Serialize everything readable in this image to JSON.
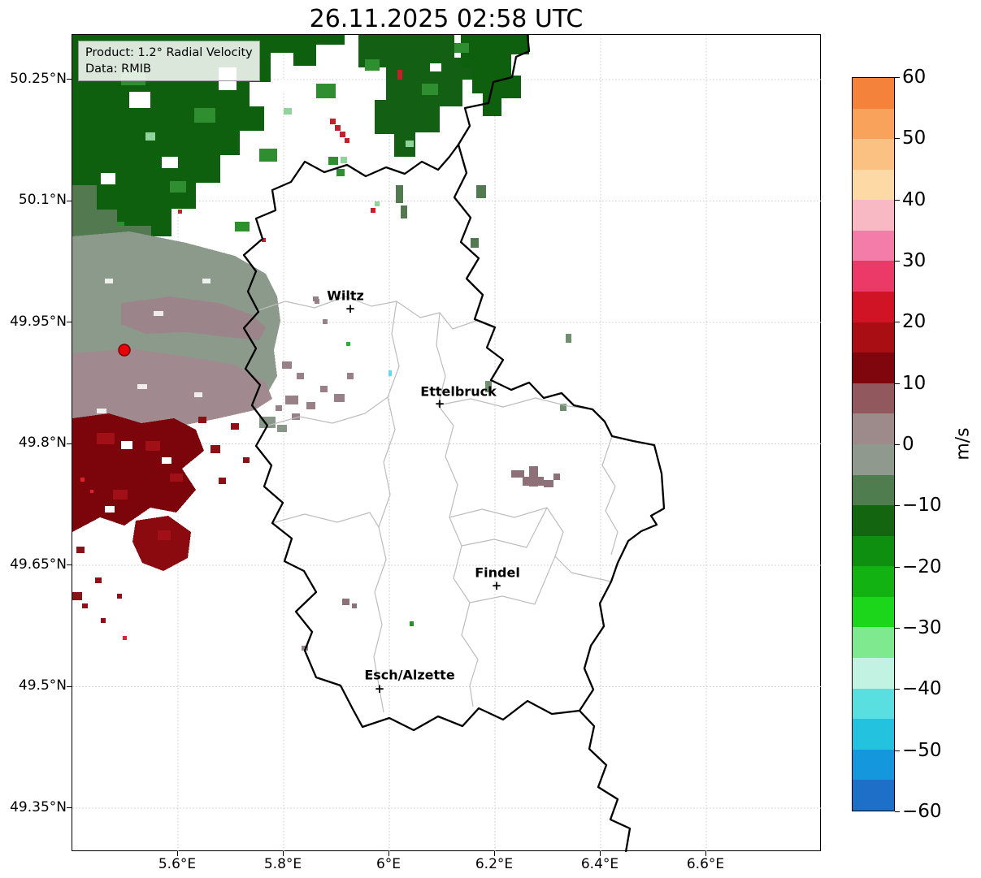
{
  "title": "26.11.2025 02:58 UTC",
  "info_box": {
    "product": "Product: 1.2° Radial Velocity",
    "data_source": "Data: RMIB"
  },
  "axes": {
    "y_ticks": [
      "50.25°N",
      "50.1°N",
      "49.95°N",
      "49.8°N",
      "49.65°N",
      "49.5°N",
      "49.35°N"
    ],
    "x_ticks": [
      "5.6°E",
      "5.8°E",
      "6°E",
      "6.2°E",
      "6.4°E",
      "6.6°E"
    ]
  },
  "cities": [
    {
      "name": "Wiltz"
    },
    {
      "name": "Ettelbruck"
    },
    {
      "name": "Findel"
    },
    {
      "name": "Esch/Alzette"
    }
  ],
  "radar": {
    "marker_color": "#e8000b"
  },
  "colorbar": {
    "unit": "m/s",
    "ticks": [
      "60",
      "50",
      "40",
      "30",
      "20",
      "10",
      "0",
      "−10",
      "−20",
      "−30",
      "−40",
      "−50",
      "−60"
    ],
    "range": [
      -60,
      60
    ],
    "segments": [
      "#f4823b",
      "#f8a25c",
      "#fbc183",
      "#fdd9a6",
      "#f9b9c4",
      "#f47ca8",
      "#ec3a68",
      "#d01425",
      "#a90e15",
      "#7f060c",
      "#91585e",
      "#9d8a8a",
      "#8f998d",
      "#4f7d4f",
      "#13650f",
      "#0f8f0f",
      "#12b212",
      "#1cd61c",
      "#7fe98f",
      "#c2f3e2",
      "#59dfe0",
      "#23c3df",
      "#1497dc",
      "#1d6fc8"
    ]
  }
}
